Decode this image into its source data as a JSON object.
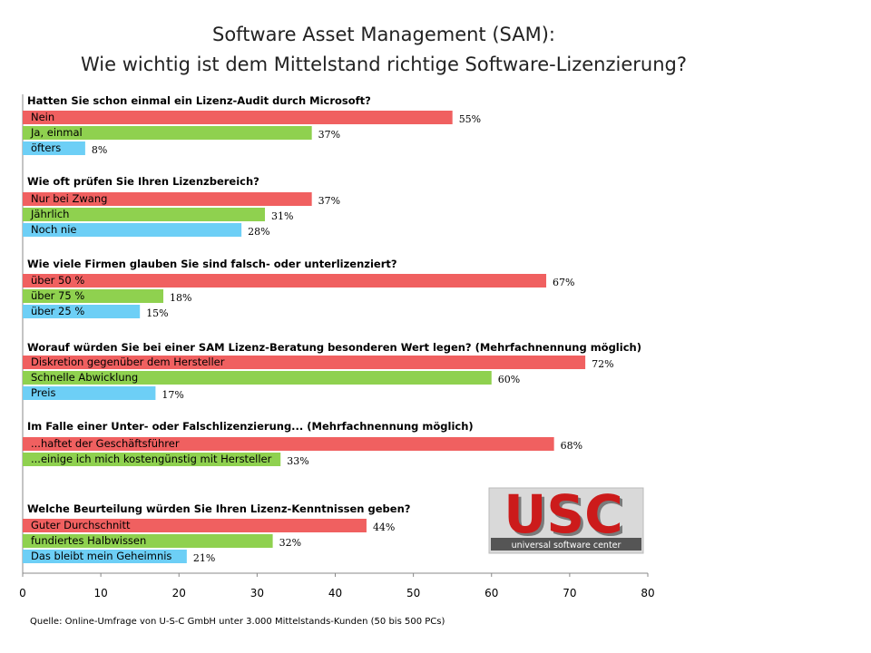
{
  "chart_data": {
    "type": "bar",
    "orientation": "horizontal",
    "title_lines": [
      "Software Asset Management (SAM):",
      "Wie wichtig ist dem Mittelstand richtige Software-Lizenzierung?"
    ],
    "xlim": [
      0,
      80
    ],
    "xticks": [
      "0",
      "10",
      "20",
      "30",
      "40",
      "50",
      "60",
      "70",
      "80"
    ],
    "value_suffix": "%",
    "colors": [
      "#f06060",
      "#8fd14f",
      "#6dcff6"
    ],
    "groups": [
      {
        "question": "Hatten Sie schon einmal ein Lizenz-Audit durch Microsoft?",
        "bars": [
          {
            "label": "Nein",
            "value": 55
          },
          {
            "label": "Ja, einmal",
            "value": 37
          },
          {
            "label": "öfters",
            "value": 8
          }
        ]
      },
      {
        "question": "Wie oft prüfen Sie Ihren Lizenzbereich?",
        "bars": [
          {
            "label": "Nur bei Zwang",
            "value": 37
          },
          {
            "label": "Jährlich",
            "value": 31
          },
          {
            "label": "Noch nie",
            "value": 28
          }
        ]
      },
      {
        "question": "Wie viele Firmen glauben Sie sind falsch- oder unterlizenziert?",
        "bars": [
          {
            "label": "über 50 %",
            "value": 67
          },
          {
            "label": "über 75 %",
            "value": 18
          },
          {
            "label": "über 25 %",
            "value": 15
          }
        ]
      },
      {
        "question": "Worauf würden Sie bei einer SAM Lizenz-Beratung besonderen Wert legen? (Mehrfachnennung möglich)",
        "bars": [
          {
            "label": "Diskretion gegenüber dem Hersteller",
            "value": 72
          },
          {
            "label": "Schnelle Abwicklung",
            "value": 60
          },
          {
            "label": "Preis",
            "value": 17
          }
        ]
      },
      {
        "question": "Im Falle einer Unter- oder Falschlizenzierung... (Mehrfachnennung möglich)",
        "bars": [
          {
            "label": "...haftet der Geschäftsführer",
            "value": 68
          },
          {
            "label": "...einige ich mich kostengünstig mit Hersteller",
            "value": 33
          }
        ]
      },
      {
        "question": "Welche Beurteilung würden Sie Ihren Lizenz-Kenntnissen geben?",
        "bars": [
          {
            "label": "Guter Durchschnitt",
            "value": 44
          },
          {
            "label": "fundiertes Halbwissen",
            "value": 32
          },
          {
            "label": "Das bleibt mein Geheimnis",
            "value": 21
          }
        ]
      }
    ],
    "source": "Quelle: Online-Umfrage von U-S-C GmbH  unter 3.000 Mittelstands-Kunden  (50 bis 500 PCs)"
  },
  "logo": {
    "text": "USC",
    "tagline": "universal software center"
  }
}
